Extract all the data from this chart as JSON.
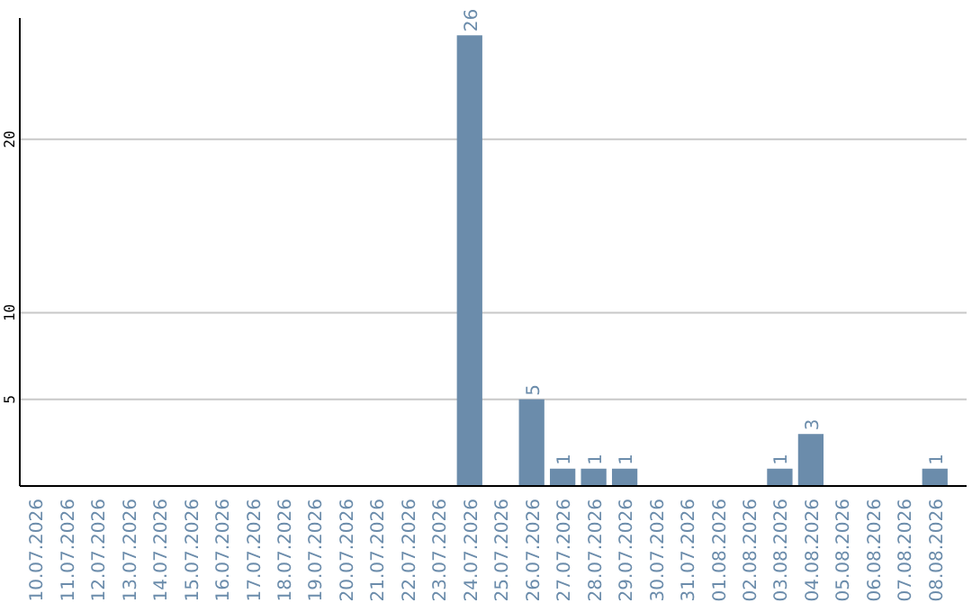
{
  "chart_data": {
    "type": "bar",
    "categories": [
      "10.07.2026",
      "11.07.2026",
      "12.07.2026",
      "13.07.2026",
      "14.07.2026",
      "15.07.2026",
      "16.07.2026",
      "17.07.2026",
      "18.07.2026",
      "19.07.2026",
      "20.07.2026",
      "21.07.2026",
      "22.07.2026",
      "23.07.2026",
      "24.07.2026",
      "25.07.2026",
      "26.07.2026",
      "27.07.2026",
      "28.07.2026",
      "29.07.2026",
      "30.07.2026",
      "31.07.2026",
      "01.08.2026",
      "02.08.2026",
      "03.08.2026",
      "04.08.2026",
      "05.08.2026",
      "06.08.2026",
      "07.08.2026",
      "08.08.2026"
    ],
    "values": [
      0,
      0,
      0,
      0,
      0,
      0,
      0,
      0,
      0,
      0,
      0,
      0,
      0,
      0,
      26,
      0,
      5,
      1,
      1,
      1,
      0,
      0,
      0,
      0,
      1,
      3,
      0,
      0,
      0,
      1
    ],
    "value_labels": [
      null,
      null,
      null,
      null,
      null,
      null,
      null,
      null,
      null,
      null,
      null,
      null,
      null,
      null,
      "26",
      null,
      "5",
      "1",
      "1",
      "1",
      null,
      null,
      null,
      null,
      "1",
      "3",
      null,
      null,
      null,
      "1"
    ],
    "color": "#6b8cab",
    "ylim": [
      0,
      27
    ],
    "yticks": [
      5,
      10,
      20
    ],
    "grid": "y"
  }
}
